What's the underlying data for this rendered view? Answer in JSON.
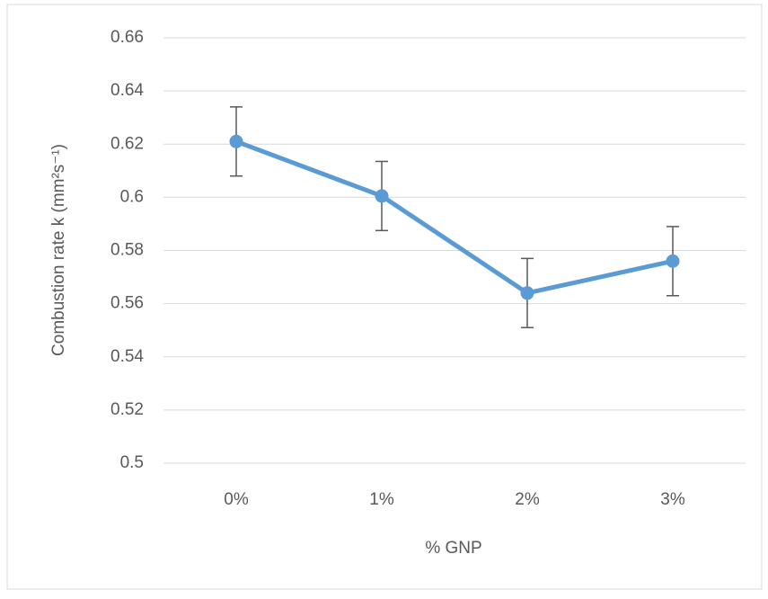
{
  "chart_data": {
    "type": "line",
    "x_label": "% GNP",
    "y_label": "Combustion rate k (mm²s⁻¹)",
    "categories": [
      "0%",
      "1%",
      "2%",
      "3%"
    ],
    "values": [
      0.621,
      0.6005,
      0.564,
      0.576
    ],
    "errors": [
      0.013,
      0.013,
      0.013,
      0.013
    ],
    "color": "#5b9bd5",
    "error_color": "#595959",
    "ylim": [
      0.5,
      0.66
    ],
    "yticks": [
      0.5,
      0.52,
      0.54,
      0.56,
      0.58,
      0.6,
      0.62,
      0.64,
      0.66
    ],
    "grid": true
  }
}
